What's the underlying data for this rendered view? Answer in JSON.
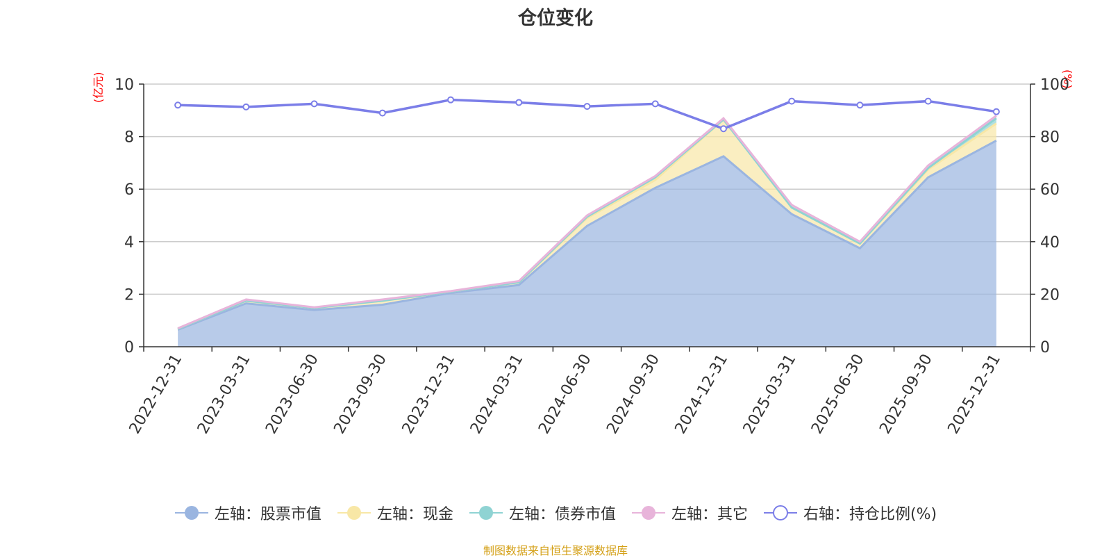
{
  "title": "仓位变化",
  "left_axis_unit": "(亿元)",
  "right_axis_unit": "(%)",
  "footer_source": "制图数据来自恒生聚源数据库",
  "legend": [
    {
      "label": "左轴：股票市值",
      "color": "#9ab5e0",
      "icon": "filled-circle-icon"
    },
    {
      "label": "左轴：现金",
      "color": "#f8e7a6",
      "icon": "filled-circle-icon"
    },
    {
      "label": "左轴：债券市值",
      "color": "#8fd3d3",
      "icon": "filled-circle-icon"
    },
    {
      "label": "左轴：其它",
      "color": "#e8b4da",
      "icon": "filled-circle-icon"
    },
    {
      "label": "右轴：持仓比例(%)",
      "color": "#7b7ee8",
      "icon": "hollow-circle-icon"
    }
  ],
  "chart_data": {
    "type": "area",
    "categories": [
      "2022-12-31",
      "2023-03-31",
      "2023-06-30",
      "2023-09-30",
      "2023-12-31",
      "2024-03-31",
      "2024-06-30",
      "2024-09-30",
      "2024-12-31",
      "2025-03-31",
      "2025-06-30",
      "2025-09-30",
      "2025-12-31"
    ],
    "stacked": true,
    "left_axis": {
      "min": 0,
      "max": 10,
      "ticks": [
        0,
        2,
        4,
        6,
        8,
        10
      ]
    },
    "right_axis": {
      "min": 0,
      "max": 100,
      "ticks": [
        0,
        20,
        40,
        60,
        80,
        100
      ]
    },
    "series": [
      {
        "name": "左轴：股票市值",
        "axis": "left",
        "color": "#9ab5e0",
        "values": [
          0.65,
          1.65,
          1.4,
          1.6,
          2.05,
          2.35,
          4.6,
          6.05,
          7.25,
          5.05,
          3.75,
          6.45,
          7.85
        ]
      },
      {
        "name": "左轴：现金",
        "axis": "left",
        "color": "#f8e7a6",
        "values": [
          0.03,
          0.1,
          0.08,
          0.15,
          0.05,
          0.1,
          0.3,
          0.3,
          1.4,
          0.25,
          0.18,
          0.3,
          0.65
        ]
      },
      {
        "name": "左轴：债券市值",
        "axis": "left",
        "color": "#8fd3d3",
        "values": [
          0.0,
          0.0,
          0.0,
          0.0,
          0.0,
          0.0,
          0.05,
          0.1,
          0.0,
          0.0,
          0.0,
          0.05,
          0.2
        ]
      },
      {
        "name": "左轴：其它",
        "axis": "left",
        "color": "#e8b4da",
        "values": [
          0.02,
          0.05,
          0.02,
          0.05,
          0.02,
          0.05,
          0.05,
          0.05,
          0.05,
          0.1,
          0.07,
          0.1,
          0.1
        ]
      },
      {
        "name": "右轴：持仓比例(%)",
        "axis": "right",
        "type": "line",
        "color": "#7b7ee8",
        "values": [
          92,
          91.3,
          92.5,
          89,
          94,
          93,
          91.5,
          92.5,
          83,
          93.5,
          92,
          93.5,
          89.5
        ]
      }
    ],
    "grid": true
  }
}
